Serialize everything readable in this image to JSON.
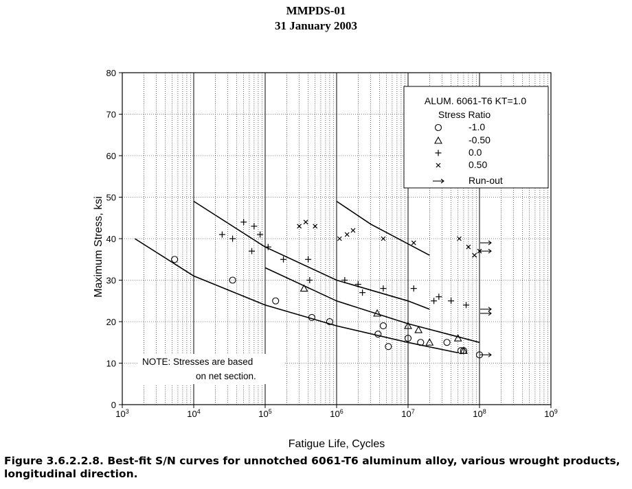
{
  "header": {
    "doc_id": "MMPDS-01",
    "date": "31 January 2003"
  },
  "figure_caption": "Figure 3.6.2.2.8.  Best-fit S/N curves for unnotched 6061-T6 aluminum alloy, various wrought products, longitudinal direction.",
  "chart_data": {
    "type": "scatter",
    "title": "",
    "xlabel": "Fatigue Life, Cycles",
    "ylabel": "Maximum Stress, ksi",
    "x_scale": "log",
    "xlim": [
      1000,
      1000000000
    ],
    "ylim": [
      0,
      80
    ],
    "grid": true,
    "x_tick_labels": [
      {
        "base": "10",
        "exp": "3",
        "value": 1000
      },
      {
        "base": "10",
        "exp": "4",
        "value": 10000
      },
      {
        "base": "10",
        "exp": "5",
        "value": 100000
      },
      {
        "base": "10",
        "exp": "6",
        "value": 1000000
      },
      {
        "base": "10",
        "exp": "7",
        "value": 10000000
      },
      {
        "base": "10",
        "exp": "8",
        "value": 100000000
      },
      {
        "base": "10",
        "exp": "9",
        "value": 1000000000
      }
    ],
    "y_tick_labels": [
      "0",
      "10",
      "20",
      "30",
      "40",
      "50",
      "60",
      "70",
      "80"
    ],
    "y_ticks": [
      0,
      10,
      20,
      30,
      40,
      50,
      60,
      70,
      80
    ],
    "legend": {
      "placement": "top-right",
      "title_line1": "ALUM. 6061-T6 KT=1.0",
      "title_line2": "Stress Ratio",
      "entries": [
        {
          "marker": "circle",
          "label": "-1.0"
        },
        {
          "marker": "triangle",
          "label": "-0.50"
        },
        {
          "marker": "plus",
          "label": "0.0"
        },
        {
          "marker": "x",
          "label": "0.50"
        },
        {
          "marker": "arrow",
          "label": "Run-out"
        }
      ]
    },
    "note": {
      "line1": "NOTE: Stresses are based",
      "line2": "on net section."
    },
    "series": [
      {
        "marker": "circle",
        "points": [
          [
            5400,
            35
          ],
          [
            35000,
            30
          ],
          [
            140000,
            25
          ],
          [
            450000,
            21
          ],
          [
            800000,
            20
          ],
          [
            3800000,
            17
          ],
          [
            4500000,
            19
          ],
          [
            5300000,
            14
          ],
          [
            10000000,
            16
          ],
          [
            15000000,
            15
          ],
          [
            35000000,
            15
          ],
          [
            55000000,
            13
          ],
          [
            60000000,
            13
          ],
          [
            100000000,
            12
          ]
        ],
        "curve": [
          [
            1500,
            40
          ],
          [
            10000,
            31
          ],
          [
            100000,
            24
          ],
          [
            1000000,
            19
          ],
          [
            10000000,
            15
          ],
          [
            50000000,
            12.5
          ]
        ]
      },
      {
        "marker": "triangle",
        "points": [
          [
            350000,
            28
          ],
          [
            3700000,
            22
          ],
          [
            10000000,
            19
          ],
          [
            14000000,
            18
          ],
          [
            20000000,
            15
          ],
          [
            50000000,
            16
          ],
          [
            60000000,
            13
          ]
        ],
        "curve": [
          [
            100000,
            33
          ],
          [
            1000000,
            25
          ],
          [
            10000000,
            19.5
          ],
          [
            100000000,
            15
          ]
        ]
      },
      {
        "marker": "plus",
        "points": [
          [
            25000,
            41
          ],
          [
            35000,
            40
          ],
          [
            50000,
            44
          ],
          [
            65000,
            37
          ],
          [
            70000,
            43
          ],
          [
            85000,
            41
          ],
          [
            110000,
            38
          ],
          [
            180000,
            35
          ],
          [
            400000,
            35
          ],
          [
            420000,
            30
          ],
          [
            1300000,
            30
          ],
          [
            2000000,
            29
          ],
          [
            2300000,
            27
          ],
          [
            4500000,
            28
          ],
          [
            12000000,
            28
          ],
          [
            23000000,
            25
          ],
          [
            27000000,
            26
          ],
          [
            40000000,
            25
          ],
          [
            65000000,
            24
          ]
        ],
        "curve": [
          [
            10000,
            49
          ],
          [
            100000,
            38
          ],
          [
            1000000,
            30
          ],
          [
            10000000,
            25
          ],
          [
            20000000,
            23
          ]
        ]
      },
      {
        "marker": "x",
        "points": [
          [
            300000,
            43
          ],
          [
            370000,
            44
          ],
          [
            500000,
            43
          ],
          [
            1100000,
            40
          ],
          [
            1400000,
            41
          ],
          [
            1700000,
            42
          ],
          [
            4500000,
            40
          ],
          [
            12000000,
            39
          ],
          [
            52000000,
            40
          ],
          [
            70000000,
            38
          ],
          [
            85000000,
            36
          ],
          [
            100000000,
            37
          ]
        ],
        "curve": [
          [
            1000000,
            49
          ],
          [
            3000000,
            43.5
          ],
          [
            20000000,
            36
          ]
        ]
      }
    ],
    "runouts": [
      [
        100000000,
        39
      ],
      [
        100000000,
        37
      ],
      [
        100000000,
        23
      ],
      [
        100000000,
        22
      ],
      [
        100000000,
        12
      ]
    ]
  }
}
